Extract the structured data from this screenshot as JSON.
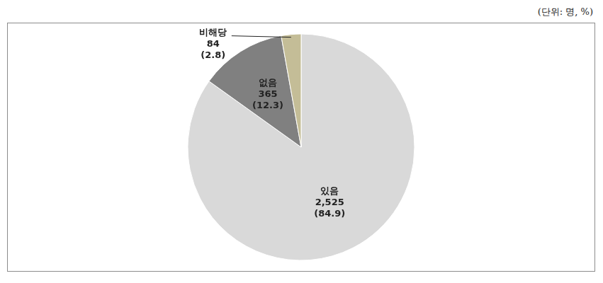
{
  "chart_data": {
    "type": "pie",
    "unit": "(단위: 명, %)",
    "categories": [
      "있음",
      "없음",
      "비해당"
    ],
    "values": [
      2525,
      365,
      84
    ],
    "value_labels": [
      "2,525",
      "365",
      "84"
    ],
    "percentages": [
      84.9,
      12.3,
      2.8
    ],
    "percentage_labels": [
      "(84.9)",
      "(12.3)",
      "(2.8)"
    ],
    "colors": [
      "#d9d9d9",
      "#808080",
      "#c4bd97"
    ],
    "data_labels": true
  }
}
